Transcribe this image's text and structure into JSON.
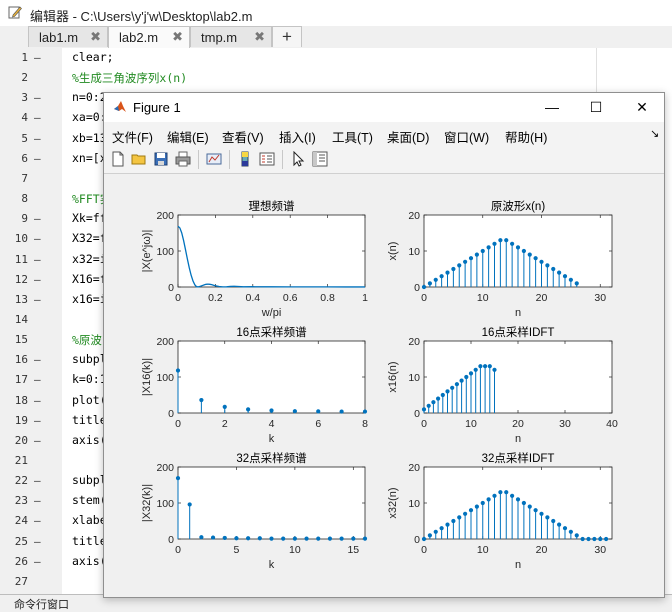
{
  "editor": {
    "title": "编辑器 - C:\\Users\\y'j'w\\Desktop\\lab2.m",
    "tabs": [
      {
        "label": "lab1.m",
        "close": "✖"
      },
      {
        "label": "lab2.m",
        "close": "✖"
      },
      {
        "label": "tmp.m",
        "close": "✖"
      }
    ],
    "add_tab": "+",
    "lines": [
      {
        "n": "1",
        "dash": "—",
        "text": "clear;",
        "comment": false
      },
      {
        "n": "2",
        "dash": "",
        "text": "%生成三角波序列x(n)",
        "comment": true
      },
      {
        "n": "3",
        "dash": "—",
        "text": "n=0:2",
        "comment": false
      },
      {
        "n": "4",
        "dash": "—",
        "text": "xa=0:",
        "comment": false
      },
      {
        "n": "5",
        "dash": "—",
        "text": "xb=13",
        "comment": false
      },
      {
        "n": "6",
        "dash": "—",
        "text": "xn=[x",
        "comment": false
      },
      {
        "n": "7",
        "dash": "",
        "text": "",
        "comment": false
      },
      {
        "n": "8",
        "dash": "",
        "text": "%FFT实",
        "comment": true
      },
      {
        "n": "9",
        "dash": "—",
        "text": "Xk=ff",
        "comment": false
      },
      {
        "n": "10",
        "dash": "—",
        "text": "X32=f",
        "comment": false
      },
      {
        "n": "11",
        "dash": "—",
        "text": "x32=i",
        "comment": false
      },
      {
        "n": "12",
        "dash": "—",
        "text": "X16=f",
        "comment": false
      },
      {
        "n": "13",
        "dash": "—",
        "text": "x16=i",
        "comment": false
      },
      {
        "n": "14",
        "dash": "",
        "text": "",
        "comment": false
      },
      {
        "n": "15",
        "dash": "",
        "text": "%原波",
        "comment": true
      },
      {
        "n": "16",
        "dash": "—",
        "text": "subpl",
        "comment": false
      },
      {
        "n": "17",
        "dash": "—",
        "text": "k=0:1",
        "comment": false
      },
      {
        "n": "18",
        "dash": "—",
        "text": "plot(",
        "comment": false
      },
      {
        "n": "19",
        "dash": "—",
        "text": "title",
        "comment": false
      },
      {
        "n": "20",
        "dash": "—",
        "text": "axis(",
        "comment": false
      },
      {
        "n": "21",
        "dash": "",
        "text": "",
        "comment": false
      },
      {
        "n": "22",
        "dash": "—",
        "text": "subpl",
        "comment": false
      },
      {
        "n": "23",
        "dash": "—",
        "text": "stem(",
        "comment": false
      },
      {
        "n": "24",
        "dash": "—",
        "text": "xlabe",
        "comment": false
      },
      {
        "n": "25",
        "dash": "—",
        "text": "title",
        "comment": false
      },
      {
        "n": "26",
        "dash": "—",
        "text": "axis(",
        "comment": false
      },
      {
        "n": "27",
        "dash": "",
        "text": "",
        "comment": false
      }
    ],
    "command_window_label": "命令行窗口"
  },
  "figure": {
    "title": "Figure 1",
    "window_buttons": {
      "minimize": "—",
      "maximize": "☐",
      "close": "✕"
    },
    "menu": [
      "文件(F)",
      "编辑(E)",
      "查看(V)",
      "插入(I)",
      "工具(T)",
      "桌面(D)",
      "窗口(W)",
      "帮助(H)"
    ],
    "menu_arrow": "↘",
    "toolbar": [
      "new-file-icon",
      "open-folder-icon",
      "save-icon",
      "print-icon",
      "link-plot-icon",
      "colorbar-icon",
      "legend-icon",
      "select-arrow-icon",
      "property-editor-icon"
    ]
  },
  "colors": {
    "series": "#0072bd",
    "comment": "#228b22"
  },
  "chart_data": [
    {
      "type": "line",
      "title": "理想频谱",
      "xlabel": "w/pi",
      "ylabel": "|X(e^jω)|",
      "xlim": [
        0,
        1
      ],
      "ylim": [
        0,
        200
      ],
      "xticks": [
        "0",
        "0.2",
        "0.4",
        "0.6",
        "0.8",
        "1"
      ],
      "yticks": [
        "0",
        "100",
        "200"
      ],
      "x": [
        0,
        0.01,
        0.02,
        0.03,
        0.04,
        0.05,
        0.06,
        0.07,
        0.08,
        0.09,
        0.1,
        0.11,
        0.12,
        0.13,
        0.14,
        0.15,
        0.16,
        0.17,
        0.18,
        0.19,
        0.2,
        0.22,
        0.24,
        0.26,
        0.28,
        0.3,
        0.35,
        0.4,
        0.5,
        0.6,
        0.7,
        0.8,
        0.9,
        1.0
      ],
      "y": [
        169,
        164,
        150,
        129,
        104,
        78,
        54,
        33,
        17,
        6,
        0.5,
        0.5,
        2,
        4,
        6,
        7.5,
        8,
        7.5,
        6.5,
        5,
        3.5,
        1.5,
        0.3,
        0.5,
        1.5,
        2,
        0.5,
        0.8,
        0.5,
        0.4,
        0.3,
        0.3,
        0.2,
        0.2
      ]
    },
    {
      "type": "stem",
      "title": "原波形x(n)",
      "xlabel": "n",
      "ylabel": "x(n)",
      "xlim": [
        0,
        32
      ],
      "ylim": [
        0,
        20
      ],
      "xticks": [
        "0",
        "10",
        "20",
        "30"
      ],
      "yticks": [
        "0",
        "10",
        "20"
      ],
      "x": [
        0,
        1,
        2,
        3,
        4,
        5,
        6,
        7,
        8,
        9,
        10,
        11,
        12,
        13,
        14,
        15,
        16,
        17,
        18,
        19,
        20,
        21,
        22,
        23,
        24,
        25,
        26
      ],
      "y": [
        0,
        1,
        2,
        3,
        4,
        5,
        6,
        7,
        8,
        9,
        10,
        11,
        12,
        13,
        13,
        12,
        11,
        10,
        9,
        8,
        7,
        6,
        5,
        4,
        3,
        2,
        1
      ]
    },
    {
      "type": "stem",
      "title": "16点采样频谱",
      "xlabel": "k",
      "ylabel": "|X16(k)|",
      "xlim": [
        0,
        8
      ],
      "ylim": [
        0,
        200
      ],
      "xticks": [
        "0",
        "2",
        "4",
        "6",
        "8"
      ],
      "yticks": [
        "0",
        "100",
        "200"
      ],
      "x": [
        0,
        1,
        2,
        3,
        4,
        5,
        6,
        7,
        8
      ],
      "y": [
        118,
        36,
        17,
        10,
        7,
        5,
        4.5,
        4,
        4
      ]
    },
    {
      "type": "stem",
      "title": "16点采样IDFT",
      "xlabel": "n",
      "ylabel": "x16(n)",
      "xlim": [
        0,
        40
      ],
      "ylim": [
        0,
        20
      ],
      "xticks": [
        "0",
        "10",
        "20",
        "30",
        "40"
      ],
      "yticks": [
        "0",
        "10",
        "20"
      ],
      "x": [
        0,
        1,
        2,
        3,
        4,
        5,
        6,
        7,
        8,
        9,
        10,
        11,
        12,
        13,
        14,
        15
      ],
      "y": [
        1,
        2,
        3,
        4,
        5,
        6,
        7,
        8,
        9,
        10,
        11,
        12,
        13,
        13,
        13,
        12
      ]
    },
    {
      "type": "stem",
      "title": "32点采样频谱",
      "xlabel": "k",
      "ylabel": "|X32(k)|",
      "xlim": [
        0,
        16
      ],
      "ylim": [
        0,
        200
      ],
      "xticks": [
        "0",
        "5",
        "10",
        "15"
      ],
      "yticks": [
        "0",
        "100",
        "200"
      ],
      "x": [
        0,
        1,
        2,
        3,
        4,
        5,
        6,
        7,
        8,
        9,
        10,
        11,
        12,
        13,
        14,
        15,
        16
      ],
      "y": [
        169,
        96,
        5,
        4,
        3,
        2,
        2,
        2,
        1,
        1,
        1,
        1,
        1,
        1,
        1,
        1,
        1
      ]
    },
    {
      "type": "stem",
      "title": "32点采样IDFT",
      "xlabel": "n",
      "ylabel": "x32(n)",
      "xlim": [
        0,
        32
      ],
      "ylim": [
        0,
        20
      ],
      "xticks": [
        "0",
        "10",
        "20",
        "30"
      ],
      "yticks": [
        "0",
        "10",
        "20"
      ],
      "x": [
        0,
        1,
        2,
        3,
        4,
        5,
        6,
        7,
        8,
        9,
        10,
        11,
        12,
        13,
        14,
        15,
        16,
        17,
        18,
        19,
        20,
        21,
        22,
        23,
        24,
        25,
        26,
        27,
        28,
        29,
        30,
        31
      ],
      "y": [
        0,
        1,
        2,
        3,
        4,
        5,
        6,
        7,
        8,
        9,
        10,
        11,
        12,
        13,
        13,
        12,
        11,
        10,
        9,
        8,
        7,
        6,
        5,
        4,
        3,
        2,
        1,
        0,
        0,
        0,
        0,
        0
      ]
    }
  ]
}
